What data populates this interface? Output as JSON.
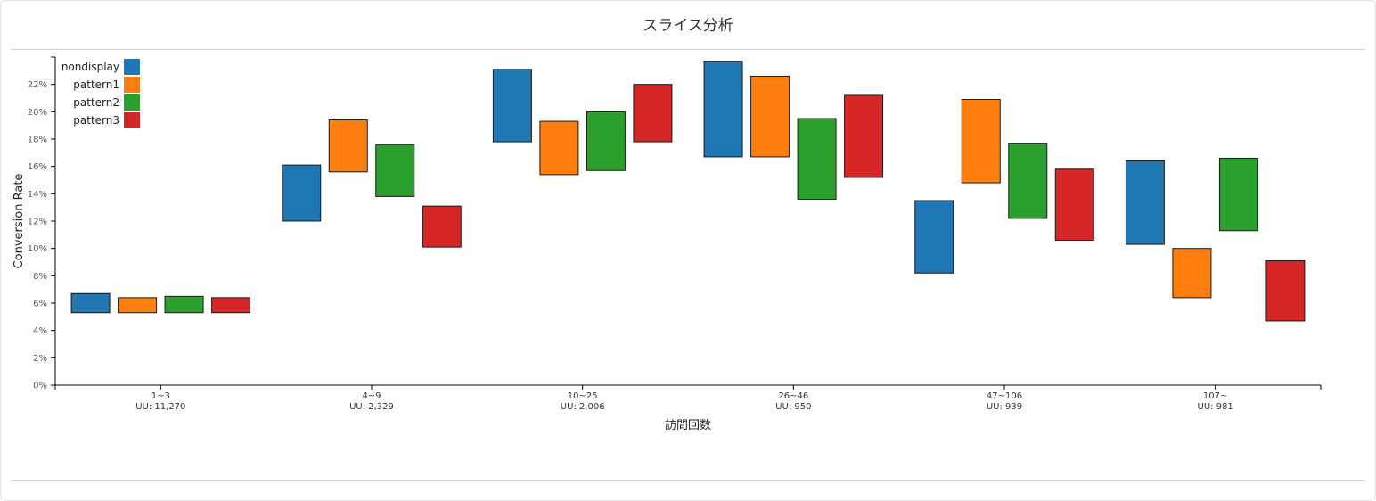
{
  "title": "スライス分析",
  "colors": {
    "nondisplay": "#1f77b4",
    "pattern1": "#ff7f0e",
    "pattern2": "#2ca02c",
    "pattern3": "#d62728"
  },
  "chart_data": {
    "type": "bar",
    "subtype": "floating-range",
    "xlabel": "訪問回数",
    "ylabel": "Conversion Rate",
    "ylim": [
      0,
      0.24
    ],
    "yticks": [
      0,
      0.02,
      0.04,
      0.06,
      0.08,
      0.1,
      0.12,
      0.14,
      0.16,
      0.18,
      0.2,
      0.22
    ],
    "ytick_labels": [
      "0%",
      "2%",
      "4%",
      "6%",
      "8%",
      "10%",
      "12%",
      "14%",
      "16%",
      "18%",
      "20%",
      "22%"
    ],
    "legend_position": "top-left",
    "categories": [
      {
        "label": "1~3",
        "uu": "UU: 11,270"
      },
      {
        "label": "4~9",
        "uu": "UU: 2,329"
      },
      {
        "label": "10~25",
        "uu": "UU: 2,006"
      },
      {
        "label": "26~46",
        "uu": "UU: 950"
      },
      {
        "label": "47~106",
        "uu": "UU: 939"
      },
      {
        "label": "107~",
        "uu": "UU: 981"
      }
    ],
    "series": [
      {
        "name": "nondisplay",
        "key": "nondisplay",
        "ranges": [
          [
            0.053,
            0.067
          ],
          [
            0.12,
            0.161
          ],
          [
            0.178,
            0.231
          ],
          [
            0.167,
            0.237
          ],
          [
            0.082,
            0.135
          ],
          [
            0.103,
            0.164
          ]
        ]
      },
      {
        "name": "pattern1",
        "key": "pattern1",
        "ranges": [
          [
            0.053,
            0.064
          ],
          [
            0.156,
            0.194
          ],
          [
            0.154,
            0.193
          ],
          [
            0.167,
            0.226
          ],
          [
            0.148,
            0.209
          ],
          [
            0.064,
            0.1
          ]
        ]
      },
      {
        "name": "pattern2",
        "key": "pattern2",
        "ranges": [
          [
            0.053,
            0.065
          ],
          [
            0.138,
            0.176
          ],
          [
            0.157,
            0.2
          ],
          [
            0.136,
            0.195
          ],
          [
            0.122,
            0.177
          ],
          [
            0.113,
            0.166
          ]
        ]
      },
      {
        "name": "pattern3",
        "key": "pattern3",
        "ranges": [
          [
            0.053,
            0.064
          ],
          [
            0.101,
            0.131
          ],
          [
            0.178,
            0.22
          ],
          [
            0.152,
            0.212
          ],
          [
            0.106,
            0.158
          ],
          [
            0.047,
            0.091
          ]
        ]
      }
    ]
  }
}
